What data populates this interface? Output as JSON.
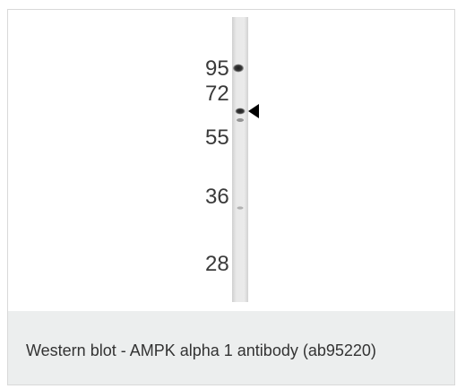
{
  "figure": {
    "caption": "Western blot - AMPK alpha 1 antibody (ab95220)",
    "marker_labels": [
      "95",
      "72",
      "55",
      "36",
      "28"
    ]
  },
  "colors": {
    "lane": "#e6e6e6",
    "band": "#2b2b2b",
    "caption_background": "#eceeee",
    "arrow": "#000000"
  },
  "icons": {
    "arrow": "left-pointing-triangle"
  }
}
